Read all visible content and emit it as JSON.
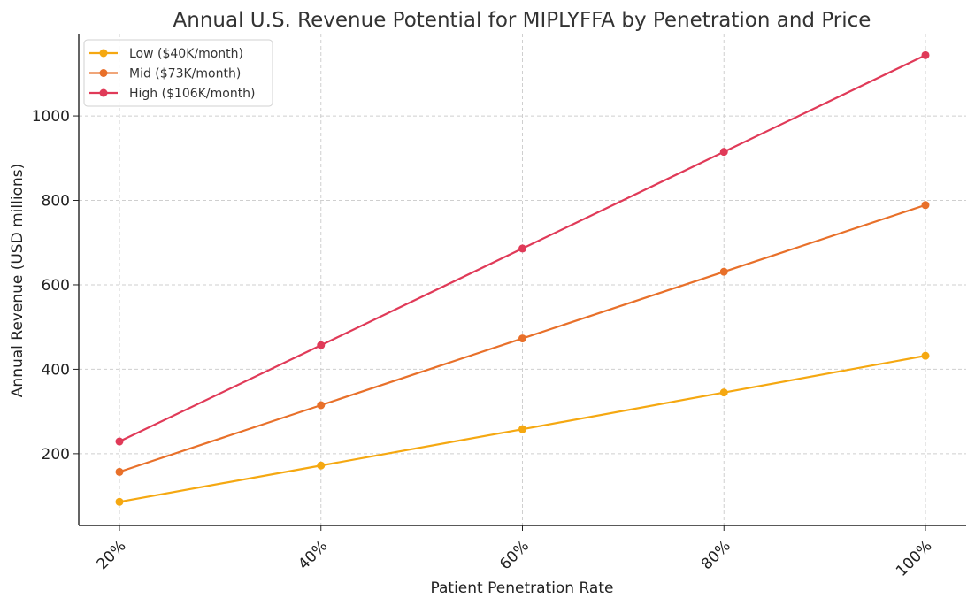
{
  "chart_data": {
    "type": "line",
    "title": "Annual U.S. Revenue Potential for MIPLYFFA by Penetration and Price",
    "xlabel": "Patient Penetration Rate",
    "ylabel": "Annual Revenue (USD millions)",
    "categories": [
      "20%",
      "40%",
      "60%",
      "80%",
      "100%"
    ],
    "yticks": [
      200,
      400,
      600,
      800,
      1000
    ],
    "ylim": [
      30,
      1195
    ],
    "grid": true,
    "legend_position": "top-left",
    "series": [
      {
        "name": "Low ($40K/month)",
        "color": "#f5a811",
        "values": [
          86,
          172,
          258,
          345,
          432
        ]
      },
      {
        "name": "Mid ($73K/month)",
        "color": "#e8702a",
        "values": [
          157,
          315,
          473,
          631,
          789
        ]
      },
      {
        "name": "High ($106K/month)",
        "color": "#e03a58",
        "values": [
          229,
          457,
          686,
          915,
          1144
        ]
      }
    ]
  }
}
